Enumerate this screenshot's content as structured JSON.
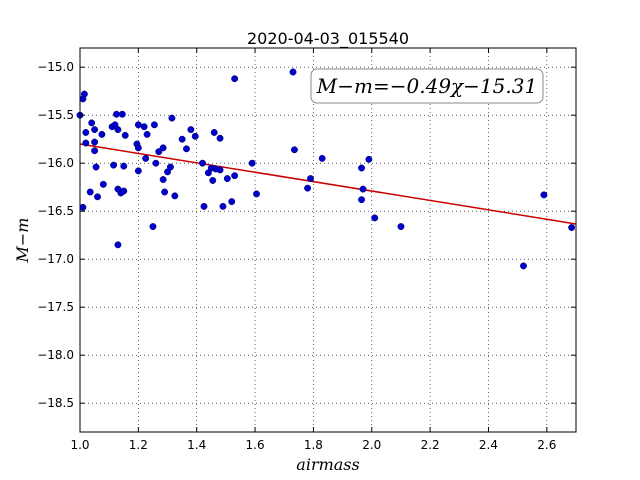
{
  "chart_data": {
    "type": "scatter",
    "title": "2020-04-03_015540",
    "xlabel": "airmass",
    "ylabel": "M−m",
    "xlim": [
      1.0,
      2.7
    ],
    "ylim": [
      -18.8,
      -14.8
    ],
    "y_inverted": true,
    "grid": true,
    "x_ticks": [
      1.0,
      1.2,
      1.4,
      1.6,
      1.8,
      2.0,
      2.2,
      2.4,
      2.6
    ],
    "x_tick_labels": [
      "1.0",
      "1.2",
      "1.4",
      "1.6",
      "1.8",
      "2.0",
      "2.2",
      "2.4",
      "2.6"
    ],
    "y_ticks": [
      -15.0,
      -15.5,
      -16.0,
      -16.5,
      -17.0,
      -17.5,
      -18.0,
      -18.5
    ],
    "y_tick_labels": [
      "−15.0",
      "−15.5",
      "−16.0",
      "−16.5",
      "−17.0",
      "−17.5",
      "−18.0",
      "−18.5"
    ],
    "annotation": "M−m=−0.49χ−15.31",
    "fit": {
      "slope": -0.49,
      "intercept": -15.31,
      "color": "#cc0000"
    },
    "marker_color": "#0000cc",
    "points": [
      {
        "x": 1.0,
        "y": -15.5
      },
      {
        "x": 1.01,
        "y": -15.33
      },
      {
        "x": 1.015,
        "y": -15.28
      },
      {
        "x": 1.02,
        "y": -15.68
      },
      {
        "x": 1.02,
        "y": -15.79
      },
      {
        "x": 1.01,
        "y": -16.46
      },
      {
        "x": 1.035,
        "y": -16.3
      },
      {
        "x": 1.04,
        "y": -15.58
      },
      {
        "x": 1.05,
        "y": -15.65
      },
      {
        "x": 1.05,
        "y": -15.78
      },
      {
        "x": 1.05,
        "y": -15.87
      },
      {
        "x": 1.055,
        "y": -16.04
      },
      {
        "x": 1.06,
        "y": -16.35
      },
      {
        "x": 1.075,
        "y": -15.7
      },
      {
        "x": 1.08,
        "y": -16.22
      },
      {
        "x": 1.11,
        "y": -15.62
      },
      {
        "x": 1.115,
        "y": -16.02
      },
      {
        "x": 1.12,
        "y": -15.6
      },
      {
        "x": 1.125,
        "y": -15.49
      },
      {
        "x": 1.13,
        "y": -15.65
      },
      {
        "x": 1.13,
        "y": -16.27
      },
      {
        "x": 1.13,
        "y": -16.85
      },
      {
        "x": 1.14,
        "y": -16.31
      },
      {
        "x": 1.145,
        "y": -15.49
      },
      {
        "x": 1.15,
        "y": -16.03
      },
      {
        "x": 1.15,
        "y": -16.29
      },
      {
        "x": 1.155,
        "y": -15.71
      },
      {
        "x": 1.195,
        "y": -15.8
      },
      {
        "x": 1.2,
        "y": -15.6
      },
      {
        "x": 1.2,
        "y": -15.84
      },
      {
        "x": 1.2,
        "y": -16.08
      },
      {
        "x": 1.22,
        "y": -15.62
      },
      {
        "x": 1.225,
        "y": -15.95
      },
      {
        "x": 1.23,
        "y": -15.7
      },
      {
        "x": 1.25,
        "y": -16.66
      },
      {
        "x": 1.255,
        "y": -15.6
      },
      {
        "x": 1.26,
        "y": -16.0
      },
      {
        "x": 1.27,
        "y": -15.88
      },
      {
        "x": 1.285,
        "y": -15.84
      },
      {
        "x": 1.285,
        "y": -16.17
      },
      {
        "x": 1.29,
        "y": -16.3
      },
      {
        "x": 1.3,
        "y": -16.09
      },
      {
        "x": 1.31,
        "y": -16.04
      },
      {
        "x": 1.315,
        "y": -15.53
      },
      {
        "x": 1.325,
        "y": -16.34
      },
      {
        "x": 1.35,
        "y": -15.75
      },
      {
        "x": 1.365,
        "y": -15.85
      },
      {
        "x": 1.38,
        "y": -15.65
      },
      {
        "x": 1.395,
        "y": -15.72
      },
      {
        "x": 1.42,
        "y": -16.0
      },
      {
        "x": 1.425,
        "y": -16.45
      },
      {
        "x": 1.44,
        "y": -16.1
      },
      {
        "x": 1.45,
        "y": -16.05
      },
      {
        "x": 1.455,
        "y": -16.18
      },
      {
        "x": 1.46,
        "y": -15.68
      },
      {
        "x": 1.465,
        "y": -16.06
      },
      {
        "x": 1.48,
        "y": -15.74
      },
      {
        "x": 1.48,
        "y": -16.07
      },
      {
        "x": 1.49,
        "y": -16.45
      },
      {
        "x": 1.505,
        "y": -16.16
      },
      {
        "x": 1.52,
        "y": -16.4
      },
      {
        "x": 1.53,
        "y": -15.12
      },
      {
        "x": 1.53,
        "y": -16.13
      },
      {
        "x": 1.59,
        "y": -16.0
      },
      {
        "x": 1.605,
        "y": -16.32
      },
      {
        "x": 1.73,
        "y": -15.05
      },
      {
        "x": 1.735,
        "y": -15.86
      },
      {
        "x": 1.78,
        "y": -16.26
      },
      {
        "x": 1.79,
        "y": -16.16
      },
      {
        "x": 1.83,
        "y": -15.95
      },
      {
        "x": 1.965,
        "y": -16.05
      },
      {
        "x": 1.965,
        "y": -16.38
      },
      {
        "x": 1.97,
        "y": -16.27
      },
      {
        "x": 1.99,
        "y": -15.96
      },
      {
        "x": 2.01,
        "y": -16.57
      },
      {
        "x": 2.1,
        "y": -16.66
      },
      {
        "x": 2.52,
        "y": -17.07
      },
      {
        "x": 2.59,
        "y": -16.33
      },
      {
        "x": 2.685,
        "y": -16.67
      }
    ]
  }
}
